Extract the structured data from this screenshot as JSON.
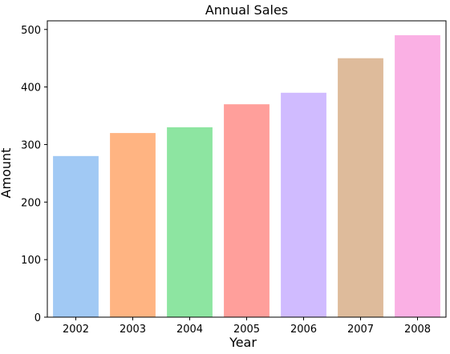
{
  "chart_data": {
    "type": "bar",
    "title": "Annual Sales",
    "xlabel": "Year",
    "ylabel": "Amount",
    "categories": [
      "2002",
      "2003",
      "2004",
      "2005",
      "2006",
      "2007",
      "2008"
    ],
    "values": [
      280,
      320,
      330,
      370,
      390,
      450,
      490
    ],
    "colors": [
      "#a1c9f4",
      "#ffb482",
      "#8de5a1",
      "#ff9f9b",
      "#d0bbff",
      "#debb9b",
      "#fab0e4"
    ],
    "ylim": [
      0,
      515
    ],
    "yticks": [
      0,
      100,
      200,
      300,
      400,
      500
    ],
    "grid": false,
    "legend": "none"
  }
}
